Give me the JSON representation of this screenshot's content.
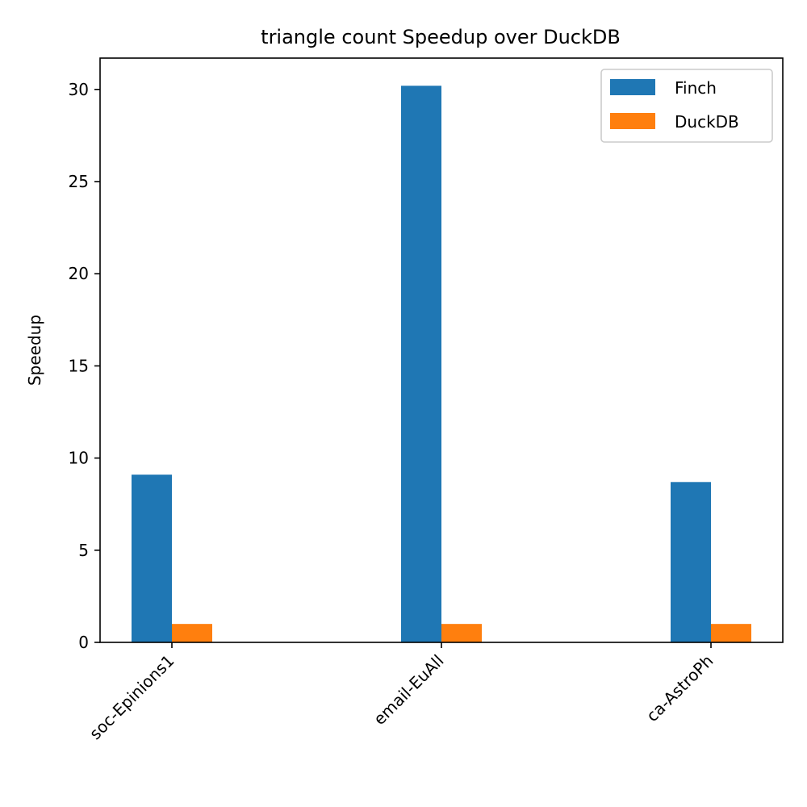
{
  "chart_data": {
    "type": "bar",
    "title": "triangle count Speedup over DuckDB",
    "xlabel": "",
    "ylabel": "Speedup",
    "categories": [
      "soc-Epinions1",
      "email-EuAll",
      "ca-AstroPh"
    ],
    "series": [
      {
        "name": "Finch",
        "color": "#1f77b4",
        "values": [
          9.1,
          30.2,
          8.7
        ]
      },
      {
        "name": "DuckDB",
        "color": "#ff7f0e",
        "values": [
          1.0,
          1.0,
          1.0
        ]
      }
    ],
    "ylim": [
      0,
      31.7
    ],
    "yticks": [
      0,
      5,
      10,
      15,
      20,
      25,
      30
    ],
    "grid": false,
    "legend_position": "top-right"
  }
}
